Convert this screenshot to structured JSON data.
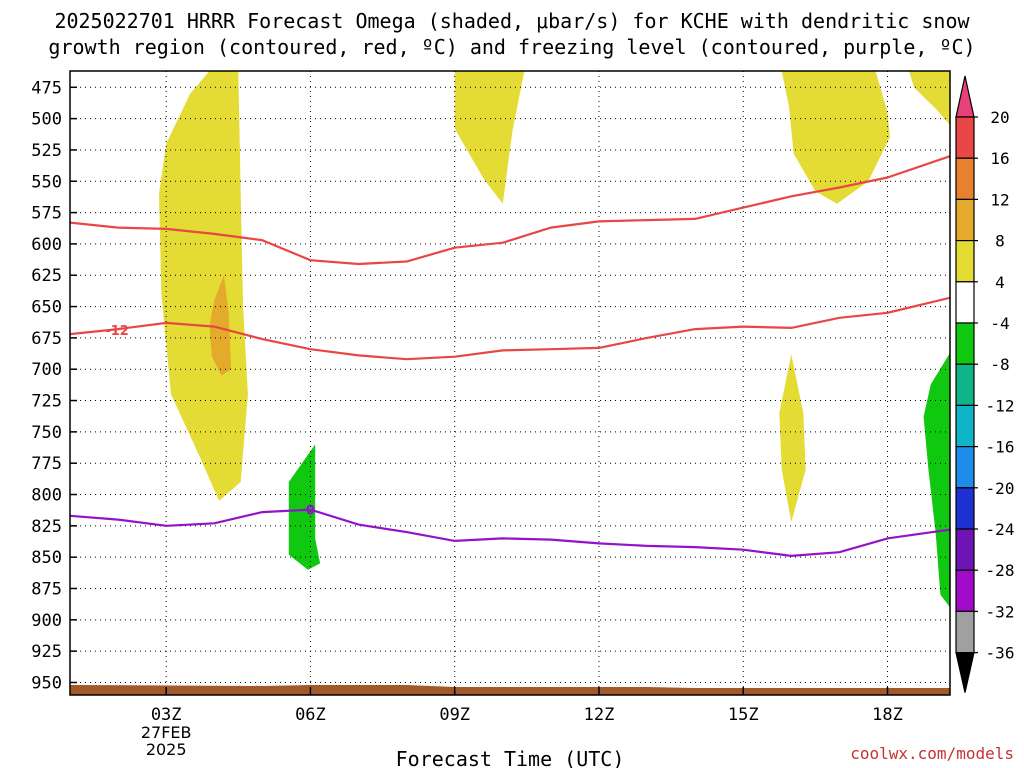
{
  "title_line1": "2025022701 HRRR Forecast Omega (shaded, μbar/s) for KCHE with dendritic snow",
  "title_line2": "growth region (contoured, red, ºC) and freezing level (contoured, purple, ºC)",
  "credit": "coolwx.com/models",
  "chart_data": {
    "type": "contour",
    "xlabel": "Forecast Time (UTC)",
    "x_range_hours": [
      1,
      19.3
    ],
    "y_range_hpa": [
      462,
      960
    ],
    "x_ticks": [
      {
        "hour": 3,
        "label": "03Z",
        "date": "27FEB",
        "year": "2025"
      },
      {
        "hour": 6,
        "label": "06Z"
      },
      {
        "hour": 9,
        "label": "09Z"
      },
      {
        "hour": 12,
        "label": "12Z"
      },
      {
        "hour": 15,
        "label": "15Z"
      },
      {
        "hour": 18,
        "label": "18Z"
      }
    ],
    "y_ticks": [
      475,
      500,
      525,
      550,
      575,
      600,
      625,
      650,
      675,
      700,
      725,
      750,
      775,
      800,
      825,
      850,
      875,
      900,
      925,
      950
    ],
    "colorbar": {
      "labels": [
        "20",
        "16",
        "12",
        "8",
        "4",
        "-4",
        "-8",
        "-12",
        "-16",
        "-20",
        "-24",
        "-28",
        "-32",
        "-36"
      ],
      "colors": [
        "#e8417a",
        "#e94646",
        "#e8812e",
        "#e3aa2c",
        "#e4dc35",
        "#ffffff",
        "#10c810",
        "#0fb488",
        "#0fb4c8",
        "#1e8ce8",
        "#1e32d2",
        "#6e14b4",
        "#a00ac8",
        "#a0a0a0",
        "#000000"
      ]
    },
    "isotherm_series": [
      {
        "label": "-12",
        "color": "#e94646",
        "points": [
          [
            1,
            672
          ],
          [
            2,
            668
          ],
          [
            3,
            663
          ],
          [
            4,
            666
          ],
          [
            5,
            676
          ],
          [
            6,
            684
          ],
          [
            7,
            689
          ],
          [
            8,
            692
          ],
          [
            9,
            690
          ],
          [
            10,
            685
          ],
          [
            11,
            684
          ],
          [
            12,
            683
          ],
          [
            13,
            675
          ],
          [
            14,
            668
          ],
          [
            15,
            666
          ],
          [
            16,
            667
          ],
          [
            17,
            659
          ],
          [
            18,
            655
          ],
          [
            19.3,
            643
          ]
        ]
      },
      {
        "label": "",
        "color": "#e94646",
        "points": [
          [
            1,
            583
          ],
          [
            2,
            587
          ],
          [
            3,
            588
          ],
          [
            4,
            592
          ],
          [
            5,
            597
          ],
          [
            6,
            613
          ],
          [
            7,
            616
          ],
          [
            8,
            614
          ],
          [
            9,
            603
          ],
          [
            10,
            599
          ],
          [
            11,
            587
          ],
          [
            12,
            582
          ],
          [
            13,
            581
          ],
          [
            14,
            580
          ],
          [
            15,
            571
          ],
          [
            16,
            562
          ],
          [
            17,
            555
          ],
          [
            18,
            547
          ],
          [
            19.3,
            530
          ]
        ]
      }
    ],
    "freezing_level": {
      "label": "0",
      "color": "#9314c8",
      "points": [
        [
          1,
          817
        ],
        [
          2,
          820
        ],
        [
          3,
          825
        ],
        [
          4,
          823
        ],
        [
          5,
          814
        ],
        [
          6,
          812
        ],
        [
          7,
          824
        ],
        [
          8,
          830
        ],
        [
          9,
          837
        ],
        [
          10,
          835
        ],
        [
          11,
          836
        ],
        [
          12,
          839
        ],
        [
          13,
          841
        ],
        [
          14,
          842
        ],
        [
          15,
          844
        ],
        [
          16,
          849
        ],
        [
          17,
          846
        ],
        [
          18,
          835
        ],
        [
          19.3,
          828
        ]
      ]
    },
    "omega_regions": [
      {
        "category": "4-8",
        "color": "#e4dc35",
        "points": [
          [
            4.2,
            462
          ],
          [
            4.5,
            462
          ],
          [
            4.55,
            560
          ],
          [
            4.6,
            650
          ],
          [
            4.7,
            720
          ],
          [
            4.55,
            790
          ],
          [
            4.1,
            805
          ],
          [
            3.7,
            770
          ],
          [
            3.1,
            720
          ],
          [
            2.9,
            640
          ],
          [
            2.85,
            560
          ],
          [
            3.0,
            520
          ],
          [
            3.5,
            480
          ],
          [
            3.9,
            462
          ]
        ]
      },
      {
        "category": "8-12",
        "color": "#e3aa2c",
        "points": [
          [
            4.0,
            645
          ],
          [
            4.2,
            625
          ],
          [
            4.3,
            655
          ],
          [
            4.35,
            700
          ],
          [
            4.15,
            705
          ],
          [
            3.95,
            690
          ],
          [
            3.9,
            665
          ]
        ]
      },
      {
        "category": "4-8",
        "color": "#e4dc35",
        "points": [
          [
            9.0,
            462
          ],
          [
            10.45,
            462
          ],
          [
            10.2,
            510
          ],
          [
            10.0,
            568
          ],
          [
            9.6,
            548
          ],
          [
            9.0,
            508
          ]
        ]
      },
      {
        "category": "4-8",
        "color": "#e4dc35",
        "points": [
          [
            15.8,
            462
          ],
          [
            17.75,
            462
          ],
          [
            18.0,
            495
          ],
          [
            18.05,
            515
          ],
          [
            17.6,
            550
          ],
          [
            16.95,
            568
          ],
          [
            16.5,
            558
          ],
          [
            16.05,
            528
          ],
          [
            15.95,
            490
          ]
        ]
      },
      {
        "category": "4-8",
        "color": "#e4dc35",
        "points": [
          [
            18.45,
            462
          ],
          [
            19.3,
            462
          ],
          [
            19.3,
            505
          ],
          [
            19.0,
            492
          ],
          [
            18.55,
            475
          ]
        ]
      },
      {
        "category": "4-8",
        "color": "#e4dc35",
        "points": [
          [
            16.0,
            688
          ],
          [
            16.25,
            735
          ],
          [
            16.3,
            780
          ],
          [
            16.0,
            822
          ],
          [
            15.8,
            780
          ],
          [
            15.75,
            735
          ]
        ]
      },
      {
        "category": "-4 to -8",
        "color": "#10c810",
        "points": [
          [
            6.1,
            760
          ],
          [
            6.1,
            835
          ],
          [
            6.2,
            855
          ],
          [
            5.95,
            860
          ],
          [
            5.55,
            848
          ],
          [
            5.55,
            790
          ]
        ]
      },
      {
        "category": "-4 to -8",
        "color": "#10c810",
        "points": [
          [
            19.3,
            687
          ],
          [
            19.3,
            890
          ],
          [
            19.1,
            880
          ],
          [
            19.0,
            830
          ],
          [
            18.85,
            780
          ],
          [
            18.75,
            738
          ],
          [
            18.9,
            712
          ]
        ]
      }
    ],
    "terrain_color": "#a3582c",
    "terrain_top_hpa": 952
  }
}
